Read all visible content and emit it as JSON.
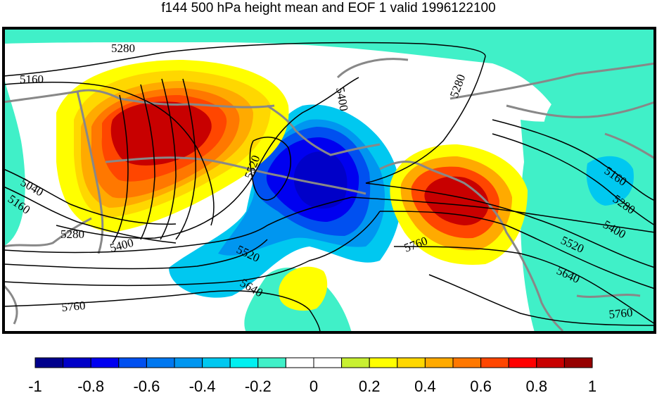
{
  "title": "f144 500 hPa height mean and EOF 1 valid 1996122100",
  "contour_labels": [
    "5280",
    "5160",
    "5400",
    "5280",
    "5520",
    "5040",
    "5160",
    "5280",
    "5400",
    "5520",
    "5640",
    "5760",
    "5760",
    "5160",
    "5280",
    "5400",
    "5520",
    "5640",
    "5760"
  ],
  "colorbar": {
    "tick_labels": [
      "-1",
      "-0.8",
      "-0.6",
      "-0.4",
      "-0.2",
      "0",
      "0.2",
      "0.4",
      "0.6",
      "0.8",
      "1"
    ],
    "colors": [
      "#00008c",
      "#0000c8",
      "#0000f0",
      "#0050f0",
      "#0078f0",
      "#0096f0",
      "#00c8f0",
      "#00f0f0",
      "#40f0c8",
      "#ffffff",
      "#ffffff",
      "#c8f032",
      "#ffff00",
      "#ffd700",
      "#ffaa00",
      "#ff7800",
      "#ff4600",
      "#ff0000",
      "#c80000",
      "#960000"
    ]
  },
  "fill_colors": {
    "cyan": "#40f0c8",
    "light_blue": "#00c8f0",
    "mid_blue": "#0096f0",
    "blue": "#0050f0",
    "dark_blue": "#0000c8",
    "yellow": "#ffff00",
    "gold": "#ffd700",
    "orange": "#ffaa00",
    "dark_orange": "#ff7800",
    "red_orange": "#ff4600",
    "red": "#c80000",
    "coast": "#888888"
  }
}
